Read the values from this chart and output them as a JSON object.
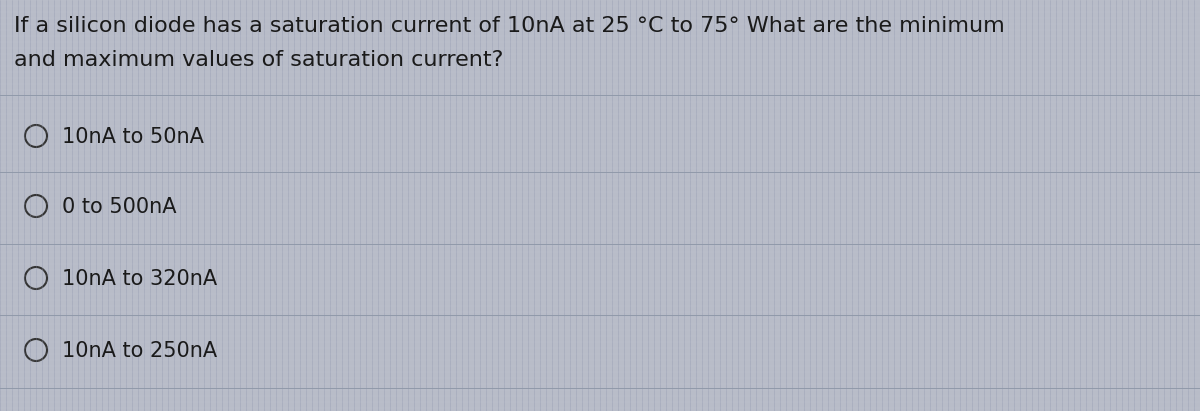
{
  "background_color": "#b8bcc8",
  "grid_color_v": "#8890a8",
  "grid_color_h": "#c8ccd8",
  "question_line1": "If a silicon diode has a saturation current of 10nA at 25 °C to 75° What are the minimum",
  "question_line2": "and maximum values of saturation current?",
  "options": [
    "10nA to 50nA",
    "0 to 500nA",
    "10nA to 320nA",
    "10nA to 250nA"
  ],
  "text_color": "#1a1a1a",
  "question_fontsize": 16,
  "option_fontsize": 15,
  "circle_color": "#333333",
  "divider_color": "#9099aa",
  "divider_linewidth": 0.7
}
